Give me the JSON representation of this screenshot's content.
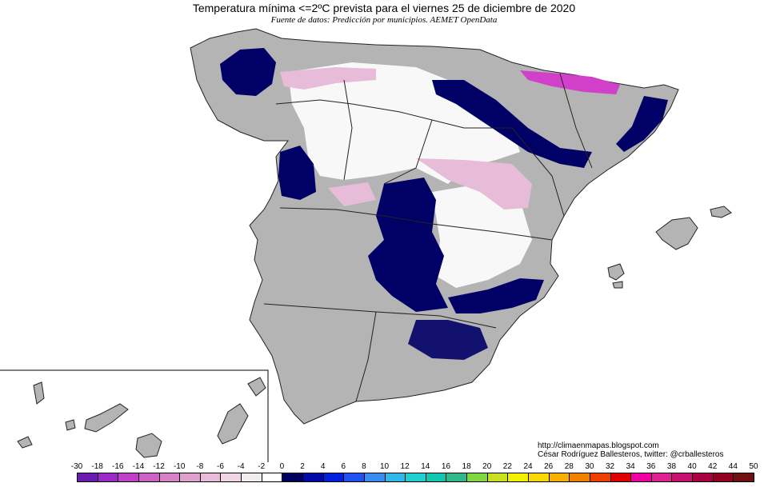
{
  "title": "Temperatura mínima <=2ºC prevista para el viernes 25 de diciembre de 2020",
  "subtitle": "Fuente de datos: Predicción por municipios. AEMET OpenData",
  "credits": {
    "url": "http://climaenmapas.blogspot.com",
    "author": "César Rodríguez Ballesteros, twitter: @crballesteros"
  },
  "legend": {
    "ticks": [
      "-30",
      "-18",
      "-16",
      "-14",
      "-12",
      "-10",
      "-8",
      "-6",
      "-4",
      "-2",
      "0",
      "2",
      "4",
      "6",
      "8",
      "10",
      "12",
      "14",
      "16",
      "18",
      "20",
      "22",
      "24",
      "26",
      "28",
      "30",
      "32",
      "34",
      "36",
      "38",
      "40",
      "42",
      "44",
      "50"
    ],
    "colors": [
      "#6a1bb0",
      "#9b28c8",
      "#c040c8",
      "#cc62c6",
      "#d682c6",
      "#dea0cc",
      "#e8bcd8",
      "#eed6e4",
      "#f0ecf0",
      "#ffffff",
      "#000060",
      "#0008a8",
      "#0020e0",
      "#2050f0",
      "#3a8cf0",
      "#30b8e8",
      "#20d0d0",
      "#10c8b0",
      "#30b888",
      "#80d840",
      "#c8e020",
      "#f0f000",
      "#f8d800",
      "#f8b000",
      "#f08000",
      "#f04000",
      "#e00000",
      "#f000a0",
      "#e02090",
      "#c81070",
      "#a80040",
      "#900020",
      "#701010"
    ]
  },
  "map_style": {
    "land": "#b4b4b4",
    "warm_area": "#f8f8f8",
    "cold_area": "#000066",
    "pink_area": "#e6bcd8",
    "magenta_area": "#d040c8",
    "border": "#222222"
  }
}
